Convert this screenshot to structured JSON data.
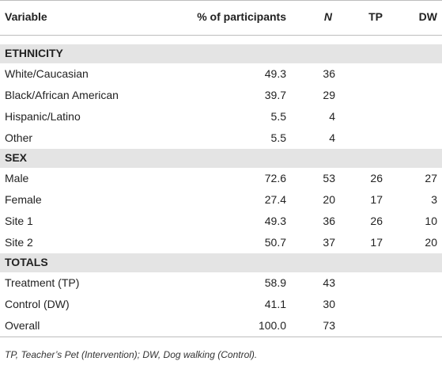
{
  "table": {
    "columns": [
      "Variable",
      "% of participants",
      "N",
      "TP",
      "DW"
    ],
    "sections": [
      {
        "title": "ETHNICITY",
        "rows": [
          [
            "White/Caucasian",
            "49.3",
            "36",
            null,
            null
          ],
          [
            "Black/African American",
            "39.7",
            "29",
            null,
            null
          ],
          [
            "Hispanic/Latino",
            "5.5",
            "4",
            null,
            null
          ],
          [
            "Other",
            "5.5",
            "4",
            null,
            null
          ]
        ]
      },
      {
        "title": "SEX",
        "rows": [
          [
            "Male",
            "72.6",
            "53",
            "26",
            "27"
          ],
          [
            "Female",
            "27.4",
            "20",
            "17",
            "3"
          ],
          [
            "Site 1",
            "49.3",
            "36",
            "26",
            "10"
          ],
          [
            "Site 2",
            "50.7",
            "37",
            "17",
            "20"
          ]
        ]
      },
      {
        "title": "TOTALS",
        "rows": [
          [
            "Treatment (TP)",
            "58.9",
            "43",
            null,
            null
          ],
          [
            "Control (DW)",
            "41.1",
            "30",
            null,
            null
          ],
          [
            "Overall",
            "100.0",
            "73",
            null,
            null
          ]
        ]
      }
    ]
  },
  "footnote": "TP, Teacher’s Pet (Intervention); DW, Dog walking (Control)."
}
